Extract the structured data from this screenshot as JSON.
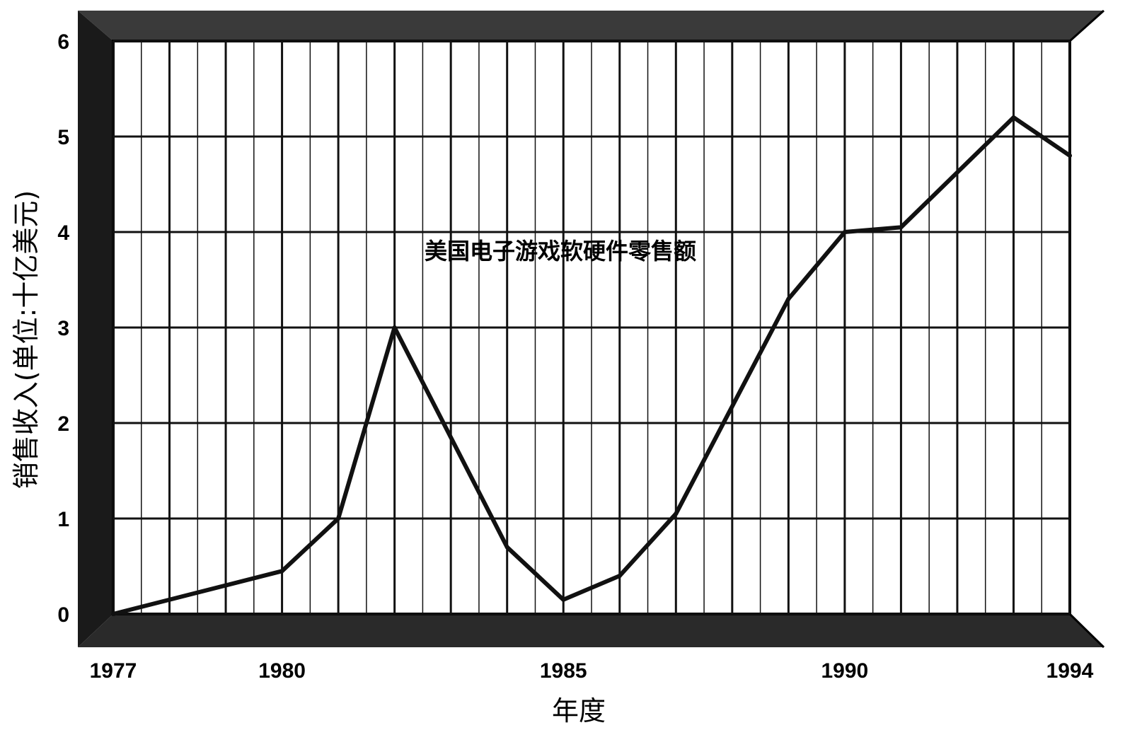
{
  "chart_data": {
    "type": "line",
    "title": "",
    "xlabel": "年度",
    "ylabel": "销售收入(单位:十亿美元)",
    "annotation": "美国电子游戏软硬件零售额",
    "x_ticks": [
      "1977",
      "1980",
      "1985",
      "1990",
      "1994"
    ],
    "y_ticks": [
      "0",
      "1",
      "2",
      "3",
      "4",
      "5",
      "6"
    ],
    "xlim": [
      1977,
      1994
    ],
    "ylim": [
      0,
      6
    ],
    "grid": true,
    "x": [
      1977,
      1980,
      1981,
      1982,
      1984,
      1985,
      1986,
      1987,
      1989,
      1990,
      1991,
      1993,
      1994
    ],
    "series": [
      {
        "values": [
          0.0,
          0.45,
          1.0,
          3.0,
          0.7,
          0.15,
          0.4,
          1.05,
          3.3,
          4.0,
          4.05,
          5.2,
          4.8
        ]
      }
    ]
  },
  "colors": {
    "line": "#111111",
    "grid": "#111111",
    "frame": "#000000",
    "background": "#ffffff"
  }
}
